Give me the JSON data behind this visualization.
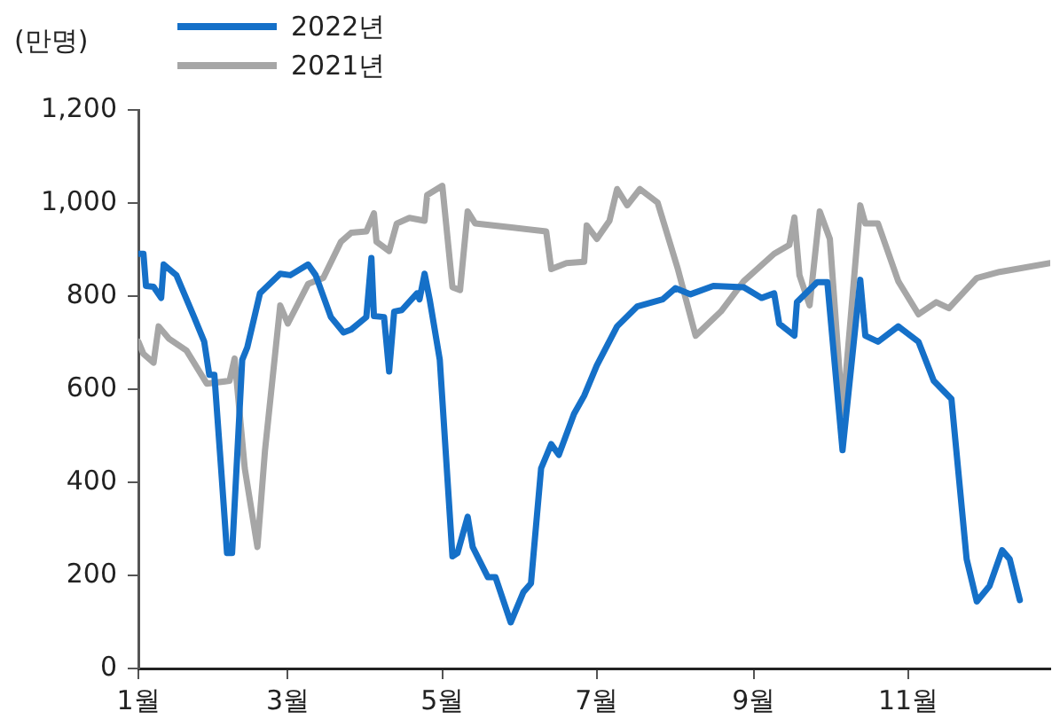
{
  "chart_data": {
    "type": "line",
    "ylabel": "(만명)",
    "legend": "top left",
    "grid": false,
    "marker": "none",
    "line_style": "solid",
    "xlim": [
      "--01-01",
      "--12-27"
    ],
    "xticks": [
      {
        "value": "--01-01",
        "label": "1월"
      },
      {
        "value": "--03-01",
        "label": "3월"
      },
      {
        "value": "--05-01",
        "label": "5월"
      },
      {
        "value": "--07-01",
        "label": "7월"
      },
      {
        "value": "--09-01",
        "label": "9월"
      },
      {
        "value": "--11-01",
        "label": "11월"
      }
    ],
    "ylim": [
      0,
      1200
    ],
    "yticks": [
      0,
      200,
      400,
      600,
      800,
      {
        "value": 1000,
        "label": "1,000"
      },
      {
        "value": 1200,
        "label": "1,200"
      }
    ],
    "series": [
      {
        "name": "2022년",
        "color": "#1570c8",
        "x": [
          "--01-01",
          "--01-03",
          "--01-04",
          "--01-07",
          "--01-10",
          "--01-11",
          "--01-16",
          "--01-23",
          "--01-27",
          "--01-29",
          "--01-31",
          "--02-03",
          "--02-05",
          "--02-07",
          "--02-11",
          "--02-13",
          "--02-18",
          "--02-26",
          "--03-02",
          "--03-09",
          "--03-12",
          "--03-18",
          "--03-23",
          "--03-26",
          "--04-01",
          "--04-03",
          "--04-04",
          "--04-08",
          "--04-10",
          "--04-12",
          "--04-15",
          "--04-21",
          "--04-22",
          "--04-24",
          "--04-26",
          "--04-30",
          "--05-05",
          "--05-07",
          "--05-11",
          "--05-13",
          "--05-19",
          "--05-22",
          "--05-28",
          "--06-02",
          "--06-05",
          "--06-09",
          "--06-13",
          "--06-16",
          "--06-22",
          "--06-26",
          "--07-01",
          "--07-09",
          "--07-17",
          "--07-27",
          "--08-01",
          "--08-07",
          "--08-16",
          "--08-28",
          "--09-04",
          "--09-09",
          "--09-11",
          "--09-17",
          "--09-18",
          "--09-26",
          "--09-30",
          "--10-06",
          "--10-13",
          "--10-15",
          "--10-20",
          "--10-28",
          "--11-05",
          "--11-11",
          "--11-18",
          "--11-24",
          "--11-28",
          "--12-03",
          "--12-08",
          "--12-11",
          "--12-15"
        ],
        "values": [
          891,
          891,
          822,
          820,
          796,
          868,
          845,
          755,
          702,
          631,
          631,
          404,
          248,
          248,
          663,
          690,
          806,
          848,
          845,
          868,
          845,
          755,
          722,
          728,
          755,
          882,
          757,
          755,
          638,
          767,
          770,
          806,
          793,
          848,
          793,
          663,
          241,
          248,
          326,
          261,
          196,
          196,
          99,
          164,
          183,
          430,
          482,
          459,
          547,
          586,
          651,
          735,
          778,
          793,
          817,
          804,
          822,
          819,
          796,
          806,
          741,
          715,
          787,
          830,
          830,
          469,
          835,
          715,
          702,
          735,
          702,
          618,
          579,
          235,
          144,
          177,
          254,
          235,
          147
        ]
      },
      {
        "name": "2021년",
        "color": "#a6a6a6",
        "x": [
          "--01-01",
          "--01-03",
          "--01-07",
          "--01-09",
          "--01-13",
          "--01-20",
          "--01-28",
          "--02-06",
          "--02-08",
          "--02-12",
          "--02-17",
          "--02-20",
          "--02-26",
          "--03-01",
          "--03-09",
          "--03-15",
          "--03-22",
          "--03-26",
          "--04-01",
          "--04-04",
          "--04-05",
          "--04-10",
          "--04-13",
          "--04-18",
          "--04-24",
          "--04-25",
          "--05-01",
          "--05-05",
          "--05-08",
          "--05-11",
          "--05-14",
          "--05-29",
          "--06-11",
          "--06-13",
          "--06-19",
          "--06-26",
          "--06-27",
          "--07-01",
          "--07-06",
          "--07-09",
          "--07-13",
          "--07-18",
          "--07-25",
          "--08-02",
          "--08-09",
          "--08-19",
          "--08-28",
          "--09-09",
          "--09-15",
          "--09-17",
          "--09-19",
          "--09-23",
          "--09-27",
          "--10-01",
          "--10-06",
          "--10-13",
          "--10-15",
          "--10-20",
          "--10-28",
          "--11-05",
          "--11-12",
          "--11-17",
          "--11-28",
          "--12-07",
          "--12-27"
        ],
        "values": [
          702,
          676,
          657,
          735,
          709,
          683,
          612,
          618,
          666,
          430,
          261,
          469,
          780,
          741,
          826,
          839,
          917,
          936,
          939,
          978,
          917,
          897,
          956,
          968,
          962,
          1017,
          1037,
          819,
          813,
          982,
          956,
          947,
          939,
          858,
          871,
          874,
          952,
          923,
          962,
          1030,
          995,
          1030,
          1001,
          858,
          715,
          767,
          832,
          891,
          910,
          969,
          845,
          780,
          982,
          923,
          547,
          995,
          956,
          956,
          832,
          761,
          787,
          774,
          839,
          852,
          871
        ]
      }
    ]
  }
}
